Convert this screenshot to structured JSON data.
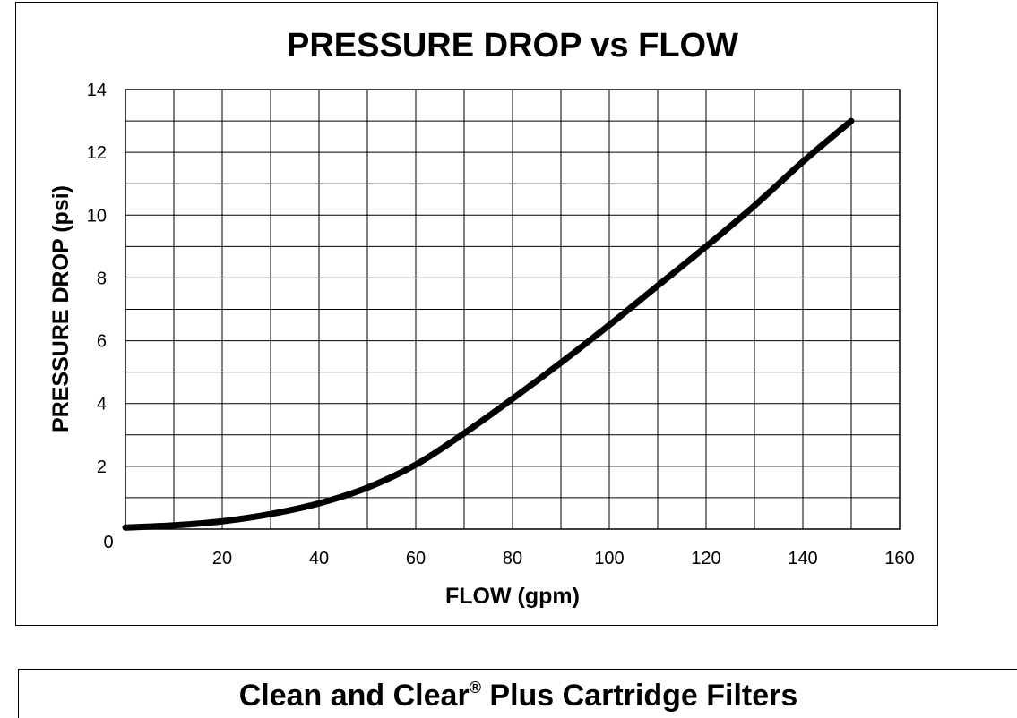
{
  "chart_data": {
    "type": "line",
    "title": "PRESSURE DROP vs FLOW",
    "xlabel": "FLOW (gpm)",
    "ylabel": "PRESSURE DROP (psi)",
    "xlim": [
      0,
      160
    ],
    "ylim": [
      0,
      14
    ],
    "x_ticks": [
      20,
      40,
      60,
      80,
      100,
      120,
      140,
      160
    ],
    "y_ticks": [
      0,
      2,
      4,
      6,
      8,
      10,
      12,
      14
    ],
    "x_grid_step": 10,
    "y_grid_step": 1,
    "grid": true,
    "legend": "none",
    "line_color": "#000000",
    "series": [
      {
        "x": [
          0,
          10,
          20,
          30,
          40,
          50,
          60,
          70,
          80,
          90,
          100,
          110,
          120,
          130,
          140,
          150
        ],
        "values": [
          0.05,
          0.12,
          0.25,
          0.48,
          0.82,
          1.32,
          2.05,
          3.05,
          4.15,
          5.3,
          6.5,
          7.75,
          9.0,
          10.3,
          11.7,
          13.0
        ]
      }
    ]
  },
  "footer": {
    "title": "Clean and Clear",
    "registered_mark": "®",
    "title_suffix": " Plus Cartridge Filters"
  }
}
